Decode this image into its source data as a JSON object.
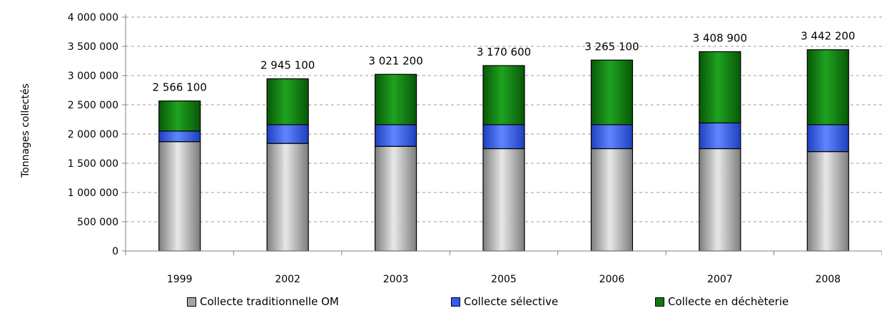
{
  "chart_data": {
    "type": "bar",
    "stacked": true,
    "categories": [
      "1999",
      "2002",
      "2003",
      "2005",
      "2006",
      "2007",
      "2008"
    ],
    "series": [
      {
        "name": "Collecte traditionnelle OM",
        "color": "#a6a6a6",
        "values": [
          1870000,
          1840000,
          1790000,
          1750000,
          1750000,
          1750000,
          1700000
        ]
      },
      {
        "name": "Collecte sélective",
        "color": "#2f5bff",
        "values": [
          180000,
          320000,
          370000,
          410000,
          410000,
          440000,
          460000
        ]
      },
      {
        "name": "Collecte en déchèterie",
        "color": "#0b7a0b",
        "values": [
          516100,
          785100,
          861200,
          1010600,
          1105100,
          1218900,
          1282200
        ]
      }
    ],
    "totals": [
      "2 566 100",
      "2 945 100",
      "3 021 200",
      "3 170 600",
      "3 265 100",
      "3 408 900",
      "3 442 200"
    ],
    "y_ticks": [
      "0",
      "500 000",
      "1 000 000",
      "1 500 000",
      "2 000 000",
      "2 500 000",
      "3 000 000",
      "3 500 000",
      "4 000 000"
    ],
    "ylim": [
      0,
      4000000
    ],
    "ylabel": "Tonnages collectés",
    "xlabel": "",
    "grid": true,
    "legend_position": "bottom"
  }
}
